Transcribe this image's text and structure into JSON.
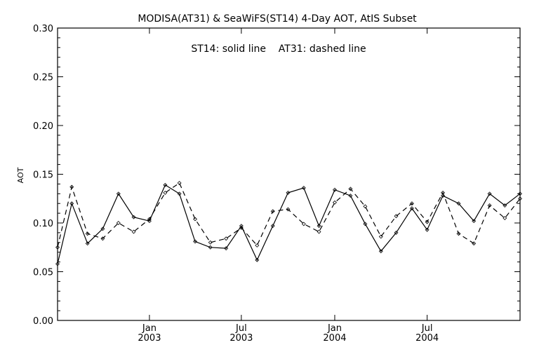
{
  "chart_data": {
    "type": "line",
    "title": "MODISA(AT31) & SeaWiFS(ST14) 4-Day AOT, AtIS Subset",
    "annotation": "ST14: solid line    AT31: dashed line",
    "ylabel": "AOT",
    "xlabel": "",
    "ylim": [
      0.0,
      0.3
    ],
    "xlim": [
      "2002-07-04",
      "2004-12-31"
    ],
    "y_ticks": [
      "0.00",
      "0.05",
      "0.10",
      "0.15",
      "0.20",
      "0.25",
      "0.30"
    ],
    "x_ticks": [
      {
        "date": "2003-01-01",
        "month": "Jan",
        "year": "2003"
      },
      {
        "date": "2003-07-01",
        "month": "Jul",
        "year": "2003"
      },
      {
        "date": "2004-01-01",
        "month": "Jan",
        "year": "2004"
      },
      {
        "date": "2004-07-01",
        "month": "Jul",
        "year": "2004"
      }
    ],
    "grid": false,
    "series": [
      {
        "name": "ST14",
        "line_style": "solid",
        "color": "#000000",
        "x": [
          "2002-07-04",
          "2002-08-01",
          "2002-09-01",
          "2002-10-01",
          "2002-11-01",
          "2002-12-01",
          "2003-01-01",
          "2003-02-01",
          "2003-03-01",
          "2003-04-01",
          "2003-05-01",
          "2003-06-01",
          "2003-07-01",
          "2003-08-01",
          "2003-09-01",
          "2003-10-01",
          "2003-11-01",
          "2003-12-01",
          "2004-01-01",
          "2004-02-01",
          "2004-03-01",
          "2004-04-01",
          "2004-05-01",
          "2004-06-01",
          "2004-07-01",
          "2004-08-01",
          "2004-09-01",
          "2004-10-01",
          "2004-11-01",
          "2004-12-01",
          "2004-12-31"
        ],
        "y": [
          0.058,
          0.12,
          0.079,
          0.094,
          0.13,
          0.106,
          0.102,
          0.139,
          0.13,
          0.081,
          0.075,
          0.074,
          0.097,
          0.062,
          0.097,
          0.131,
          0.136,
          0.097,
          0.134,
          0.128,
          0.099,
          0.071,
          0.09,
          0.115,
          0.093,
          0.128,
          0.12,
          0.102,
          0.13,
          0.118,
          0.13
        ]
      },
      {
        "name": "AT31",
        "line_style": "dashed",
        "color": "#000000",
        "x": [
          "2002-07-04",
          "2002-08-01",
          "2002-09-01",
          "2002-10-01",
          "2002-11-01",
          "2002-12-01",
          "2003-01-01",
          "2003-02-01",
          "2003-03-01",
          "2003-04-01",
          "2003-05-01",
          "2003-06-01",
          "2003-07-01",
          "2003-08-01",
          "2003-09-01",
          "2003-10-01",
          "2003-11-01",
          "2003-12-01",
          "2004-01-01",
          "2004-02-01",
          "2004-03-01",
          "2004-04-01",
          "2004-05-01",
          "2004-06-01",
          "2004-07-01",
          "2004-08-01",
          "2004-09-01",
          "2004-10-01",
          "2004-11-01",
          "2004-12-01",
          "2004-12-31"
        ],
        "y": [
          0.075,
          0.137,
          0.089,
          0.084,
          0.1,
          0.091,
          0.104,
          0.131,
          0.141,
          0.104,
          0.08,
          0.084,
          0.095,
          0.077,
          0.112,
          0.114,
          0.099,
          0.091,
          0.121,
          0.135,
          0.117,
          0.086,
          0.107,
          0.12,
          0.101,
          0.131,
          0.089,
          0.079,
          0.118,
          0.105,
          0.125
        ]
      }
    ]
  }
}
